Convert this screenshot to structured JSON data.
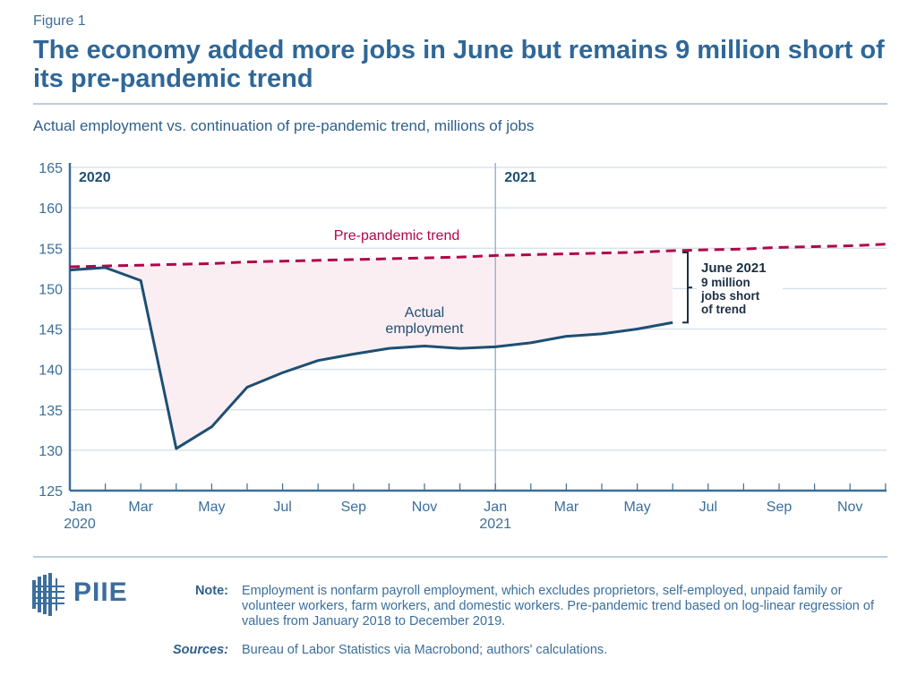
{
  "figure_label": "Figure 1",
  "title": "The economy added more jobs in June but remains 9 million short of its pre-pandemic trend",
  "subtitle": "Actual employment vs. continuation of pre-pandemic trend, millions of jobs",
  "chart_data": {
    "type": "line",
    "ylim": [
      125,
      165
    ],
    "yticks": [
      125,
      130,
      135,
      140,
      145,
      150,
      155,
      160,
      165
    ],
    "grid": true,
    "x_months": [
      "Jan 2020",
      "Feb 2020",
      "Mar 2020",
      "Apr 2020",
      "May 2020",
      "Jun 2020",
      "Jul 2020",
      "Aug 2020",
      "Sep 2020",
      "Oct 2020",
      "Nov 2020",
      "Dec 2020",
      "Jan 2021",
      "Feb 2021",
      "Mar 2021",
      "Apr 2021",
      "May 2021",
      "Jun 2021",
      "Jul 2021",
      "Aug 2021",
      "Sep 2021",
      "Oct 2021",
      "Nov 2021",
      "Dec 2021"
    ],
    "xtick_labels": [
      {
        "month": 0,
        "label": "Jan",
        "year": "2020"
      },
      {
        "month": 2,
        "label": "Mar"
      },
      {
        "month": 4,
        "label": "May"
      },
      {
        "month": 6,
        "label": "Jul"
      },
      {
        "month": 8,
        "label": "Sep"
      },
      {
        "month": 10,
        "label": "Nov"
      },
      {
        "month": 12,
        "label": "Jan",
        "year": "2021"
      },
      {
        "month": 14,
        "label": "Mar"
      },
      {
        "month": 16,
        "label": "May"
      },
      {
        "month": 18,
        "label": "Jul"
      },
      {
        "month": 20,
        "label": "Sep"
      },
      {
        "month": 22,
        "label": "Nov"
      }
    ],
    "year_markers": [
      {
        "month": 0,
        "label": "2020"
      },
      {
        "month": 12,
        "label": "2021"
      }
    ],
    "series": [
      {
        "name": "Actual employment",
        "label": "Actual employment",
        "color": "#1d4f73",
        "style": "solid",
        "values": [
          152.3,
          152.6,
          151.0,
          130.2,
          132.9,
          137.8,
          139.6,
          141.1,
          141.9,
          142.6,
          142.9,
          142.6,
          142.8,
          143.3,
          144.1,
          144.4,
          145.0,
          145.8
        ]
      },
      {
        "name": "Pre-pandemic trend",
        "label": "Pre-pandemic trend",
        "color": "#b0064a",
        "style": "dashed",
        "values": [
          152.7,
          152.8,
          152.9,
          153.0,
          153.1,
          153.3,
          153.4,
          153.5,
          153.6,
          153.7,
          153.8,
          153.9,
          154.1,
          154.2,
          154.3,
          154.4,
          154.5,
          154.7,
          154.8,
          154.9,
          155.1,
          155.2,
          155.3,
          155.5
        ]
      }
    ],
    "gap_fill_color": "#fbeef2",
    "annotation": {
      "title": "June 2021",
      "lines": [
        "9 million",
        "jobs short",
        "of trend"
      ]
    }
  },
  "footer": {
    "logo": "PIIE",
    "note_label": "Note:",
    "note_text": "Employment is nonfarm payroll employment, which excludes proprietors, self-employed, unpaid family or volunteer workers, farm workers, and domestic workers. Pre-pandemic trend based on log-linear regression of values from January 2018 to December 2019.",
    "sources_label": "Sources:",
    "sources_text": "Bureau of Labor Statistics via Macrobond; authors' calculations."
  }
}
